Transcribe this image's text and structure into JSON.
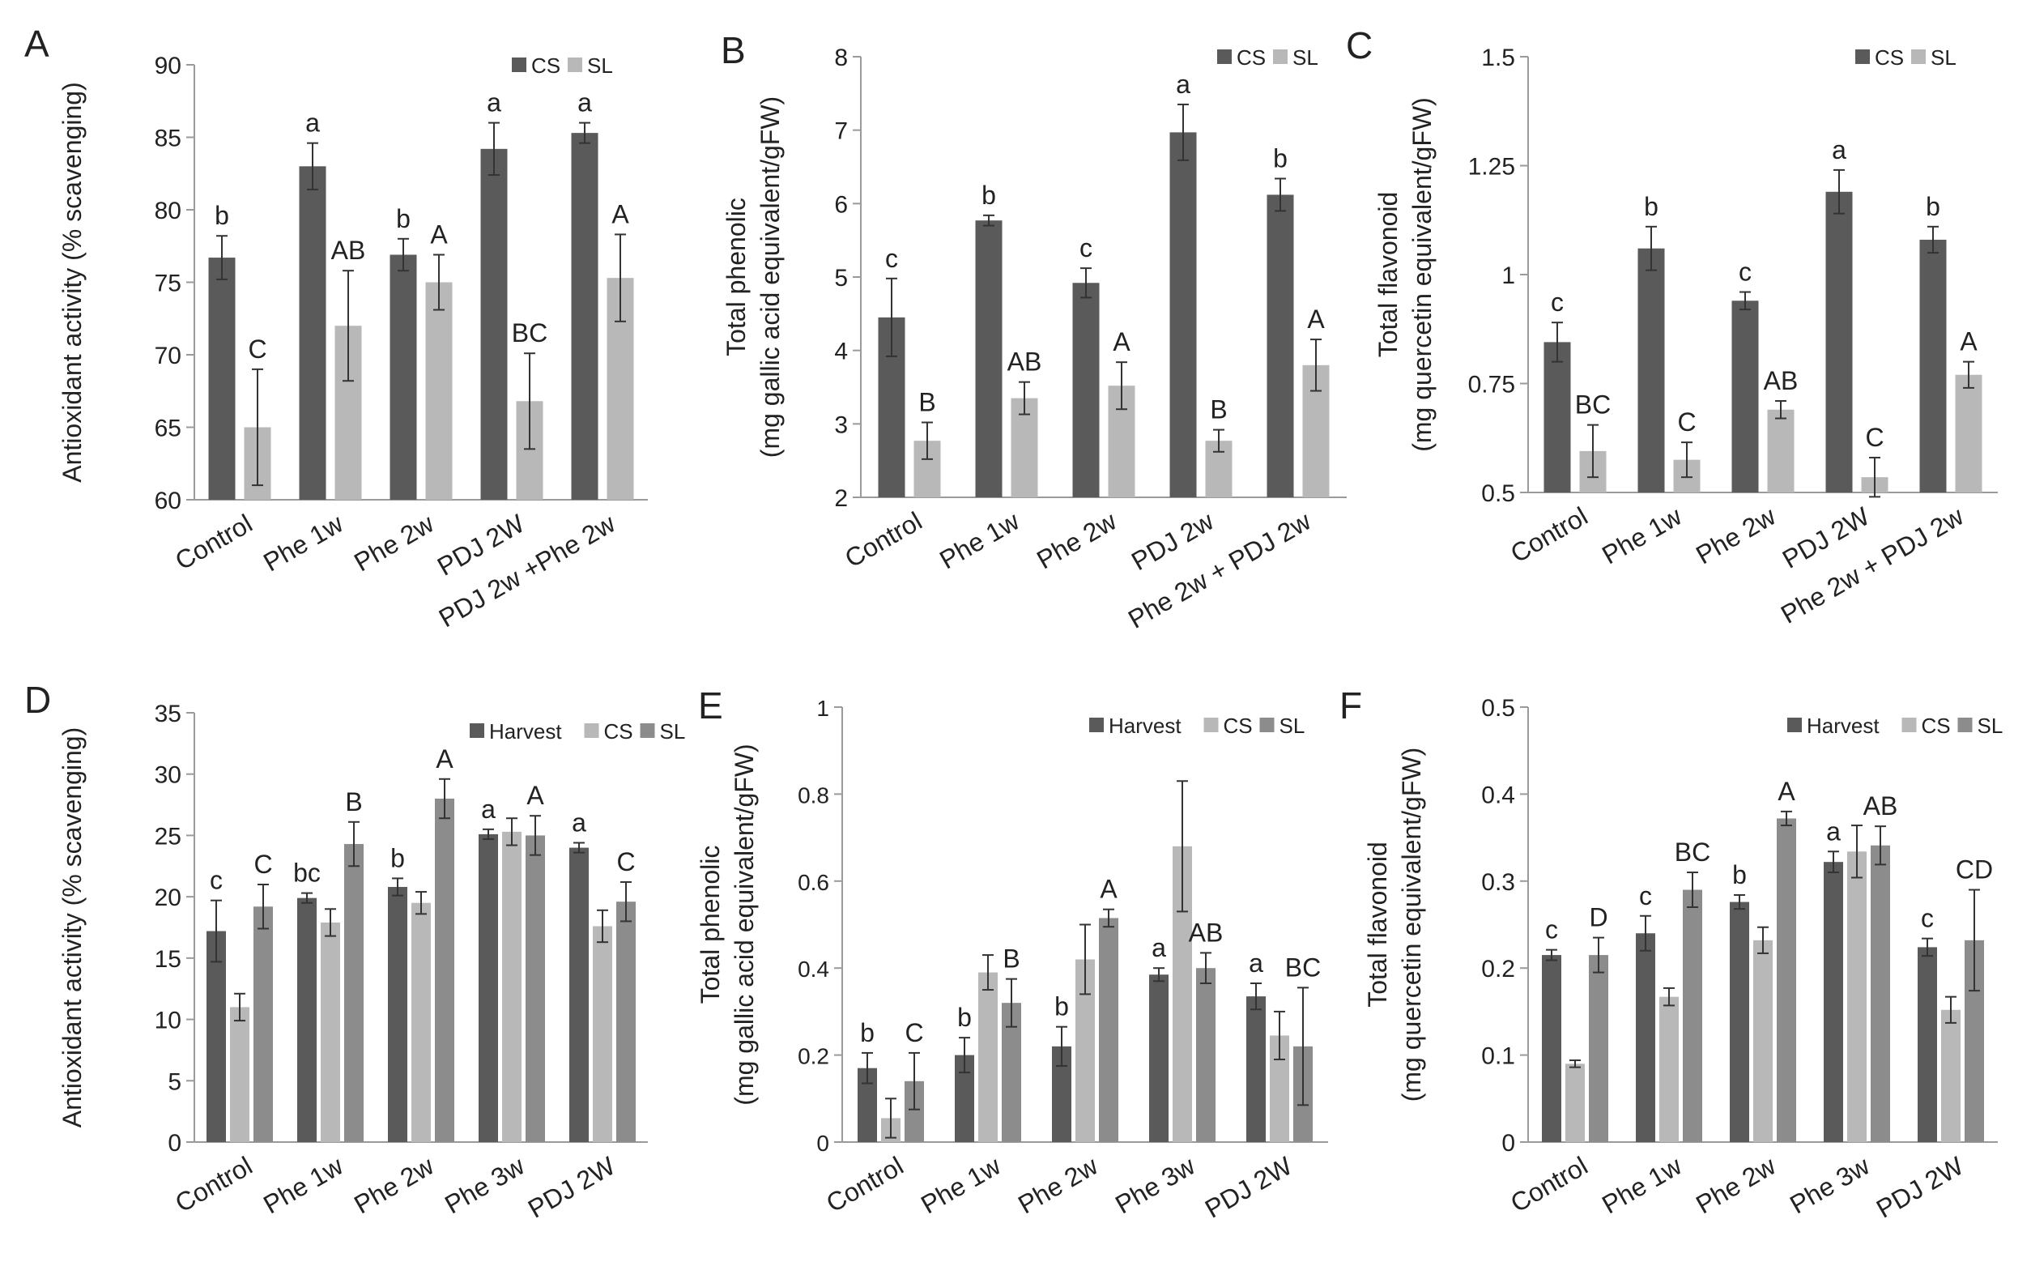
{
  "chart_data": [
    {
      "panel_label": "A",
      "type": "bar",
      "ylabel": "Antioxidant activity (% scavenging)",
      "ylim": [
        60,
        90
      ],
      "yticks": [
        60,
        65,
        70,
        75,
        80,
        85,
        90
      ],
      "categories": [
        "Control",
        "Phe 1w",
        "Phe 2w",
        "PDJ 2W",
        "PDJ 2w +Phe 2w"
      ],
      "legend_position": "top-right",
      "series": [
        {
          "name": "CS",
          "color": "#5a5a5a",
          "values": [
            76.7,
            83.0,
            76.9,
            84.2,
            85.3
          ],
          "errors": [
            1.5,
            1.6,
            1.1,
            1.8,
            0.7
          ],
          "letters": [
            "b",
            "a",
            "b",
            "a",
            "a"
          ]
        },
        {
          "name": "SL",
          "color": "#b8b8b8",
          "values": [
            65.0,
            72.0,
            75.0,
            66.8,
            75.3
          ],
          "errors": [
            4.0,
            3.8,
            1.9,
            3.3,
            3.0
          ],
          "letters": [
            "C",
            "AB",
            "A",
            "BC",
            "A"
          ]
        }
      ]
    },
    {
      "panel_label": "B",
      "type": "bar",
      "ylabel": "Total phenolic\n(mg gallic acid equivalent/gFW)",
      "ylim": [
        2,
        8
      ],
      "yticks": [
        2,
        3,
        4,
        5,
        6,
        7,
        8
      ],
      "categories": [
        "Control",
        "Phe 1w",
        "Phe 2w",
        "PDJ 2w",
        "Phe 2w + PDJ 2w"
      ],
      "legend_position": "top-right",
      "series": [
        {
          "name": "CS",
          "color": "#5a5a5a",
          "values": [
            4.45,
            5.77,
            4.92,
            6.97,
            6.12
          ],
          "errors": [
            0.53,
            0.07,
            0.2,
            0.38,
            0.22
          ],
          "letters": [
            "c",
            "b",
            "c",
            "a",
            "b"
          ]
        },
        {
          "name": "SL",
          "color": "#b8b8b8",
          "values": [
            2.77,
            3.35,
            3.52,
            2.77,
            3.8
          ],
          "errors": [
            0.25,
            0.22,
            0.32,
            0.15,
            0.35
          ],
          "letters": [
            "B",
            "AB",
            "A",
            "B",
            "A"
          ]
        }
      ]
    },
    {
      "panel_label": "C",
      "type": "bar",
      "ylabel": "Total flavonoid\n(mg quercetin equivalent/gFW)",
      "ylim": [
        0.5,
        1.5
      ],
      "yticks": [
        0.5,
        0.75,
        1.0,
        1.25,
        1.5
      ],
      "ytick_labels": [
        "0.5",
        "0.75",
        "1",
        "1.25",
        "1.5"
      ],
      "categories": [
        "Control",
        "Phe 1w",
        "Phe 2w",
        "PDJ 2W",
        "Phe 2w  + PDJ 2w"
      ],
      "legend_position": "top-right",
      "series": [
        {
          "name": "CS",
          "color": "#5a5a5a",
          "values": [
            0.845,
            1.06,
            0.94,
            1.19,
            1.08
          ],
          "errors": [
            0.045,
            0.05,
            0.02,
            0.05,
            0.03
          ],
          "letters": [
            "c",
            "b",
            "c",
            "a",
            "b"
          ]
        },
        {
          "name": "SL",
          "color": "#b8b8b8",
          "values": [
            0.595,
            0.575,
            0.69,
            0.535,
            0.77
          ],
          "errors": [
            0.06,
            0.04,
            0.02,
            0.045,
            0.03
          ],
          "letters": [
            "BC",
            "C",
            "AB",
            "C",
            "A"
          ]
        }
      ]
    },
    {
      "panel_label": "D",
      "type": "bar",
      "ylabel": "Antioxidant activity (% scavenging)",
      "ylim": [
        0,
        35
      ],
      "yticks": [
        0,
        5,
        10,
        15,
        20,
        25,
        30,
        35
      ],
      "categories": [
        "Control",
        "Phe 1w",
        "Phe 2w",
        "Phe 3w",
        "PDJ 2W"
      ],
      "legend_position": "top-right",
      "series": [
        {
          "name": "Harvest",
          "color": "#5a5a5a",
          "values": [
            17.2,
            19.9,
            20.8,
            25.1,
            24.0
          ],
          "errors": [
            2.5,
            0.4,
            0.7,
            0.4,
            0.4
          ],
          "letters": [
            "c",
            "bc",
            "b",
            "a",
            "a"
          ]
        },
        {
          "name": "CS",
          "color": "#b8b8b8",
          "values": [
            11.0,
            17.9,
            19.5,
            25.3,
            17.6
          ],
          "errors": [
            1.1,
            1.1,
            0.9,
            1.1,
            1.3
          ]
        },
        {
          "name": "SL",
          "color": "#8c8c8c",
          "values": [
            19.2,
            24.3,
            28.0,
            25.0,
            19.6
          ],
          "errors": [
            1.8,
            1.8,
            1.6,
            1.6,
            1.6
          ],
          "letters": [
            "C",
            "B",
            "A",
            "A",
            "C"
          ]
        }
      ]
    },
    {
      "panel_label": "E",
      "type": "bar",
      "ylabel": "Total phenolic\n(mg gallic acid equivalent/gFW)",
      "ylim": [
        0,
        1
      ],
      "yticks": [
        0,
        0.2,
        0.4,
        0.6,
        0.8,
        1.0
      ],
      "ytick_labels": [
        "0",
        "0.2",
        "0.4",
        "0.6",
        "0.8",
        "1"
      ],
      "categories": [
        "Control",
        "Phe 1w",
        "Phe 2w",
        "Phe 3w",
        "PDJ 2W"
      ],
      "legend_position": "top-right",
      "series": [
        {
          "name": "Harvest",
          "color": "#5a5a5a",
          "values": [
            0.17,
            0.2,
            0.22,
            0.385,
            0.335
          ],
          "errors": [
            0.035,
            0.04,
            0.045,
            0.015,
            0.03
          ],
          "letters": [
            "b",
            "b",
            "b",
            "a",
            "a"
          ]
        },
        {
          "name": "CS",
          "color": "#b8b8b8",
          "values": [
            0.055,
            0.39,
            0.42,
            0.68,
            0.245
          ],
          "errors": [
            0.045,
            0.04,
            0.08,
            0.15,
            0.055
          ]
        },
        {
          "name": "SL",
          "color": "#8c8c8c",
          "values": [
            0.14,
            0.32,
            0.515,
            0.4,
            0.22
          ],
          "errors": [
            0.065,
            0.055,
            0.02,
            0.035,
            0.135
          ],
          "letters": [
            "C",
            "B",
            "A",
            "AB",
            "BC"
          ]
        }
      ]
    },
    {
      "panel_label": "F",
      "type": "bar",
      "ylabel": "Total flavonoid\n(mg quercetin equivalent/gFW)",
      "ylim": [
        0,
        0.5
      ],
      "yticks": [
        0,
        0.1,
        0.2,
        0.3,
        0.4,
        0.5
      ],
      "ytick_labels": [
        "0",
        "0.1",
        "0.2",
        "0.3",
        "0.4",
        "0.5"
      ],
      "categories": [
        "Control",
        "Phe 1w",
        "Phe 2w",
        "Phe 3w",
        "PDJ 2W"
      ],
      "legend_position": "top-right",
      "series": [
        {
          "name": "Harvest",
          "color": "#5a5a5a",
          "values": [
            0.215,
            0.24,
            0.276,
            0.322,
            0.224
          ],
          "errors": [
            0.006,
            0.02,
            0.008,
            0.012,
            0.01
          ],
          "letters": [
            "c",
            "c",
            "b",
            "a",
            "c"
          ]
        },
        {
          "name": "CS",
          "color": "#b8b8b8",
          "values": [
            0.09,
            0.167,
            0.232,
            0.334,
            0.152
          ],
          "errors": [
            0.004,
            0.01,
            0.015,
            0.03,
            0.015
          ]
        },
        {
          "name": "SL",
          "color": "#8c8c8c",
          "values": [
            0.215,
            0.29,
            0.372,
            0.341,
            0.232
          ],
          "errors": [
            0.02,
            0.02,
            0.008,
            0.022,
            0.058
          ],
          "letters": [
            "D",
            "BC",
            "A",
            "AB",
            "CD"
          ]
        }
      ]
    }
  ]
}
